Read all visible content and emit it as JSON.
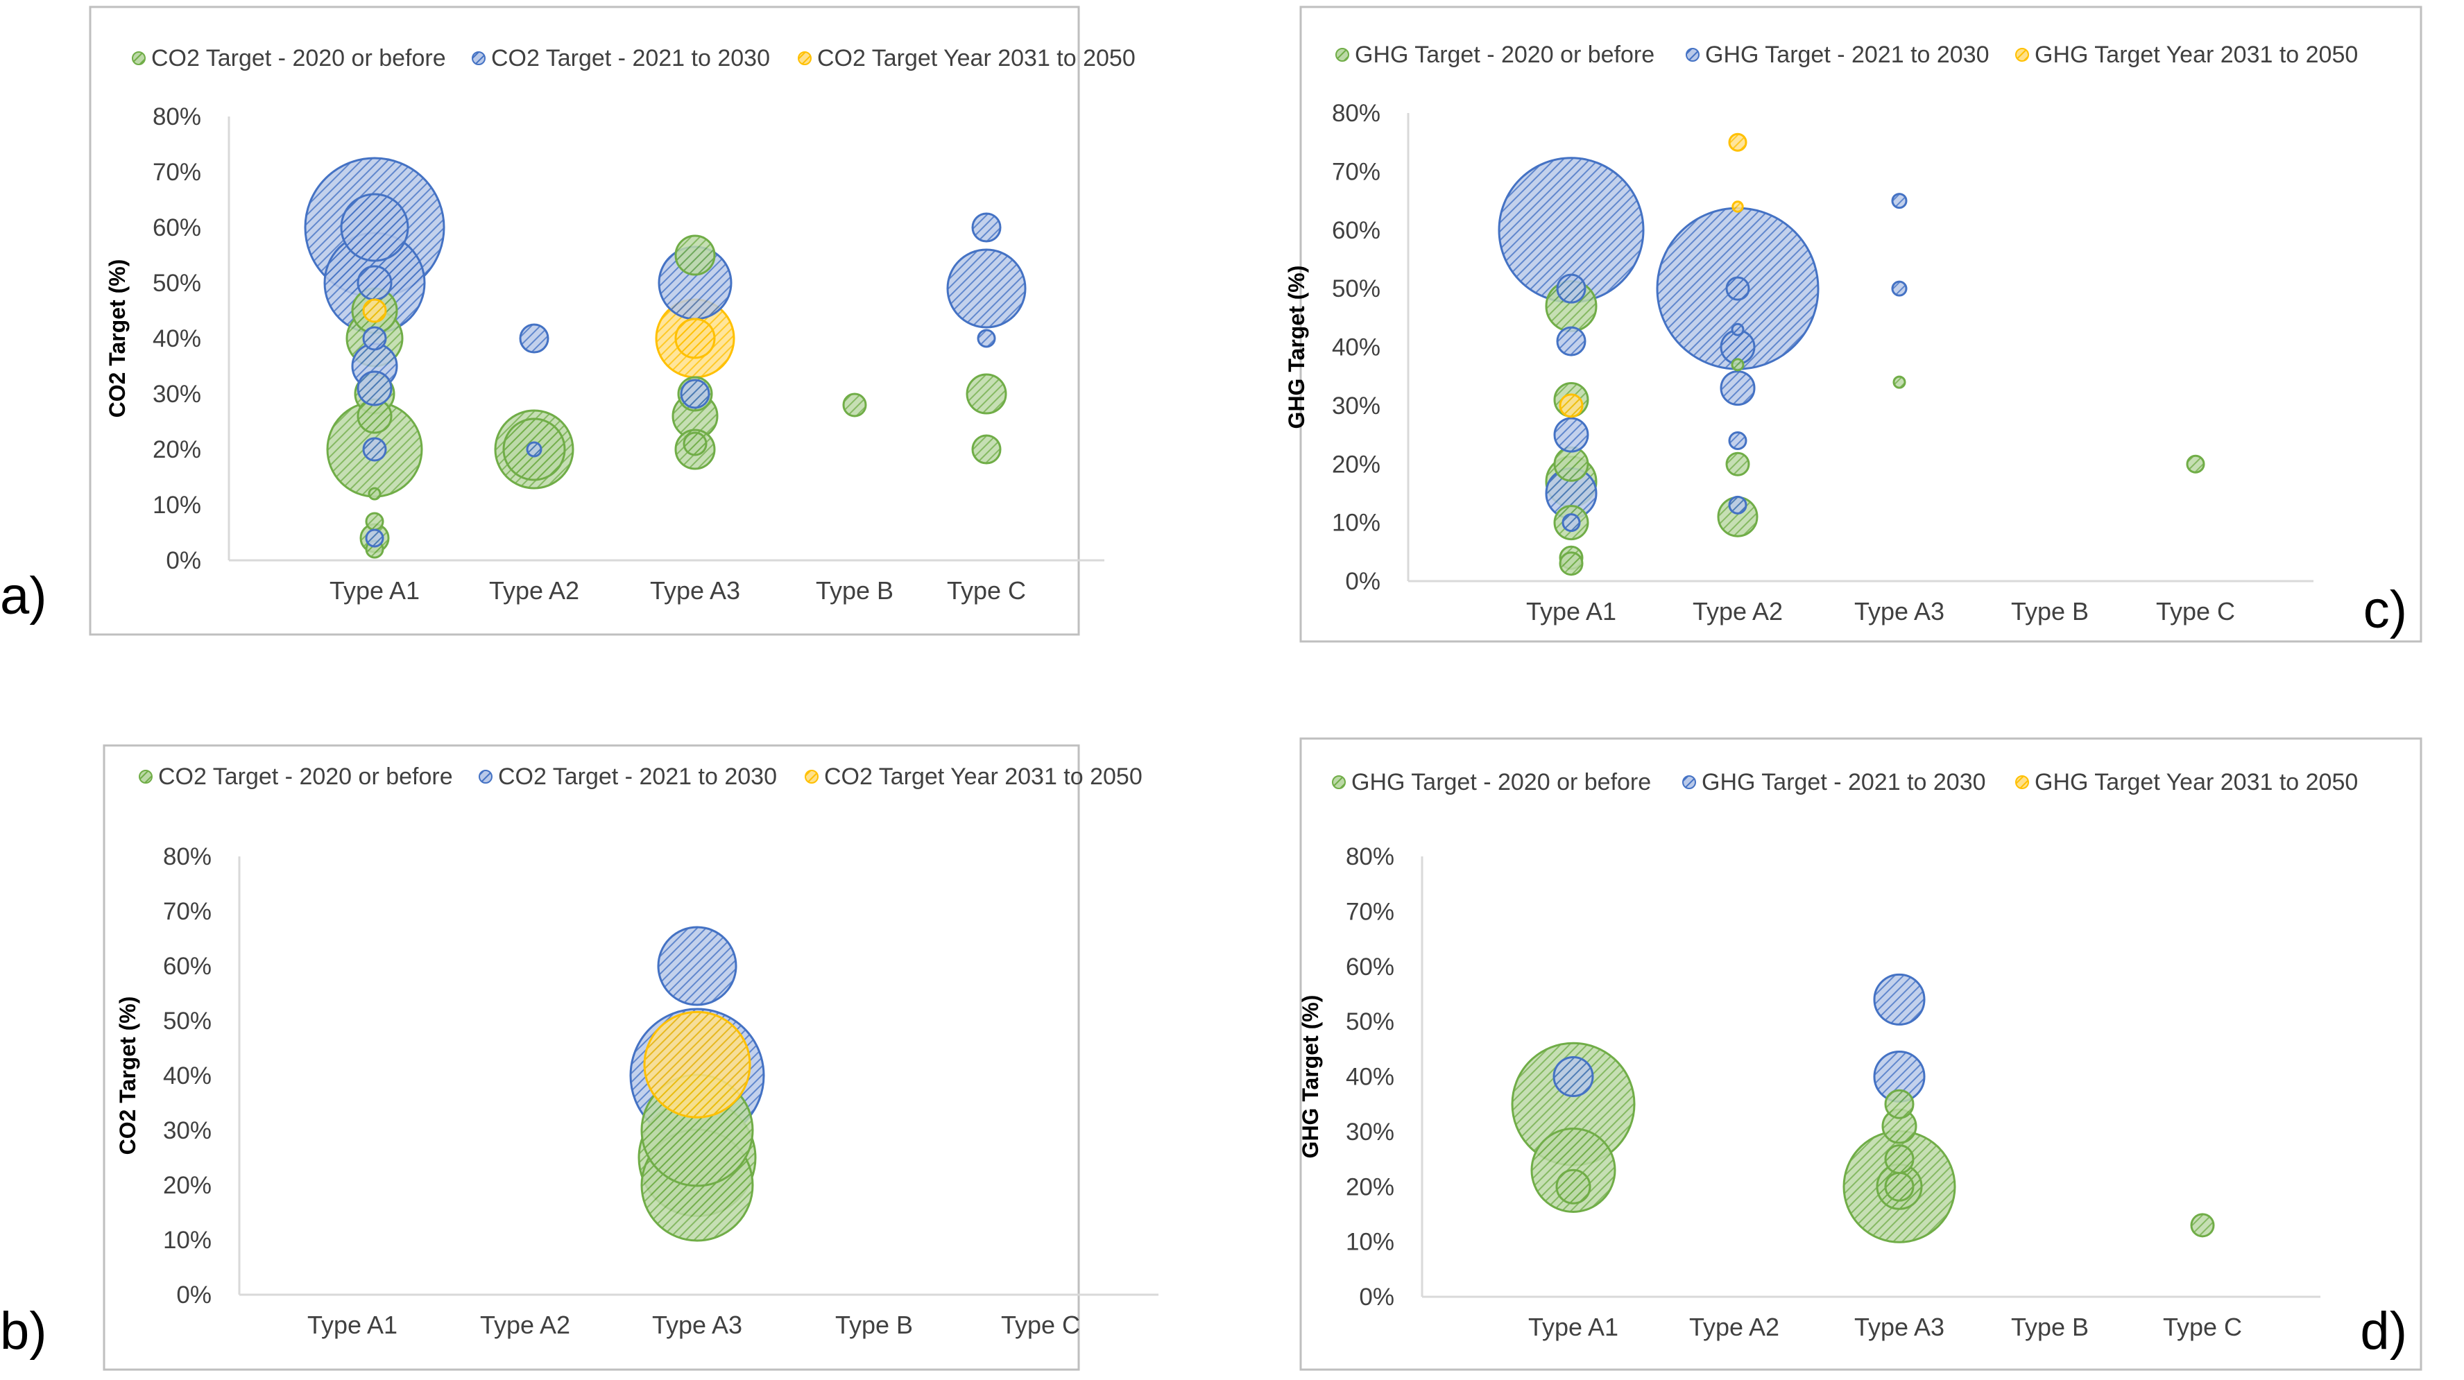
{
  "colors": {
    "green": "#70AD47",
    "blue": "#4472C4",
    "yellow": "#FFC000",
    "frame": "#BFBFBF",
    "axis": "#D9D9D9",
    "text": "#404040"
  },
  "chart_data": [
    {
      "panel_label": "a)",
      "type": "scatter",
      "title": "",
      "legend_position": "top",
      "legend": [
        "CO2 Target - 2020 or before",
        "CO2 Target - 2021 to 2030",
        "CO2 Target Year 2031 to 2050"
      ],
      "ylabel": "CO2 Target (%)",
      "xlabel": "",
      "categories": [
        "Type A1",
        "Type A2",
        "Type A3",
        "Type B",
        "Type C"
      ],
      "yticks": [
        "0%",
        "10%",
        "20%",
        "30%",
        "40%",
        "50%",
        "60%",
        "70%",
        "80%"
      ],
      "ylim": [
        0,
        80
      ],
      "grid": false,
      "points": [
        {
          "series": 0,
          "category": 0,
          "value": 20,
          "size": 17
        },
        {
          "series": 0,
          "category": 0,
          "value": 40,
          "size": 10
        },
        {
          "series": 0,
          "category": 0,
          "value": 45,
          "size": 8
        },
        {
          "series": 0,
          "category": 0,
          "value": 30,
          "size": 7
        },
        {
          "series": 0,
          "category": 0,
          "value": 26,
          "size": 6
        },
        {
          "series": 0,
          "category": 0,
          "value": 7,
          "size": 3
        },
        {
          "series": 0,
          "category": 0,
          "value": 4,
          "size": 5
        },
        {
          "series": 0,
          "category": 0,
          "value": 2,
          "size": 3
        },
        {
          "series": 0,
          "category": 0,
          "value": 12,
          "size": 2
        },
        {
          "series": 1,
          "category": 0,
          "value": 60,
          "size": 25
        },
        {
          "series": 1,
          "category": 0,
          "value": 50,
          "size": 18
        },
        {
          "series": 1,
          "category": 0,
          "value": 60,
          "size": 12
        },
        {
          "series": 1,
          "category": 0,
          "value": 50,
          "size": 6
        },
        {
          "series": 1,
          "category": 0,
          "value": 35,
          "size": 8
        },
        {
          "series": 1,
          "category": 0,
          "value": 31,
          "size": 6
        },
        {
          "series": 1,
          "category": 0,
          "value": 40,
          "size": 4
        },
        {
          "series": 1,
          "category": 0,
          "value": 20,
          "size": 4
        },
        {
          "series": 1,
          "category": 0,
          "value": 4,
          "size": 3
        },
        {
          "series": 2,
          "category": 0,
          "value": 45,
          "size": 4
        },
        {
          "series": 0,
          "category": 1,
          "value": 20,
          "size": 14
        },
        {
          "series": 0,
          "category": 1,
          "value": 20,
          "size": 11
        },
        {
          "series": 1,
          "category": 1,
          "value": 40,
          "size": 5
        },
        {
          "series": 1,
          "category": 1,
          "value": 20,
          "size": 2.5
        },
        {
          "series": 0,
          "category": 2,
          "value": 55,
          "size": 7
        },
        {
          "series": 0,
          "category": 2,
          "value": 26,
          "size": 8
        },
        {
          "series": 0,
          "category": 2,
          "value": 20,
          "size": 7
        },
        {
          "series": 0,
          "category": 2,
          "value": 21,
          "size": 4
        },
        {
          "series": 0,
          "category": 2,
          "value": 30,
          "size": 6
        },
        {
          "series": 1,
          "category": 2,
          "value": 50,
          "size": 13
        },
        {
          "series": 1,
          "category": 2,
          "value": 30,
          "size": 5
        },
        {
          "series": 2,
          "category": 2,
          "value": 40,
          "size": 14
        },
        {
          "series": 2,
          "category": 2,
          "value": 40,
          "size": 7
        },
        {
          "series": 0,
          "category": 3,
          "value": 28,
          "size": 4
        },
        {
          "series": 0,
          "category": 4,
          "value": 30,
          "size": 7
        },
        {
          "series": 0,
          "category": 4,
          "value": 20,
          "size": 5
        },
        {
          "series": 1,
          "category": 4,
          "value": 60,
          "size": 5
        },
        {
          "series": 1,
          "category": 4,
          "value": 49,
          "size": 14
        },
        {
          "series": 1,
          "category": 4,
          "value": 40,
          "size": 3
        }
      ]
    },
    {
      "panel_label": "b)",
      "type": "scatter",
      "title": "",
      "legend_position": "top",
      "legend": [
        "CO2 Target - 2020 or before",
        "CO2 Target - 2021 to 2030",
        "CO2 Target Year 2031 to 2050"
      ],
      "ylabel": "CO2 Target (%)",
      "xlabel": "",
      "categories": [
        "Type A1",
        "Type A2",
        "Type A3",
        "Type B",
        "Type C"
      ],
      "yticks": [
        "0%",
        "10%",
        "20%",
        "30%",
        "40%",
        "50%",
        "60%",
        "70%",
        "80%"
      ],
      "ylim": [
        0,
        80
      ],
      "grid": false,
      "points": [
        {
          "series": 0,
          "category": 2,
          "value": 20,
          "size": 20
        },
        {
          "series": 0,
          "category": 2,
          "value": 25,
          "size": 21
        },
        {
          "series": 0,
          "category": 2,
          "value": 30,
          "size": 20
        },
        {
          "series": 1,
          "category": 2,
          "value": 60,
          "size": 14
        },
        {
          "series": 1,
          "category": 2,
          "value": 40,
          "size": 24
        },
        {
          "series": 2,
          "category": 2,
          "value": 42,
          "size": 19
        }
      ]
    },
    {
      "panel_label": "c)",
      "type": "scatter",
      "title": "",
      "legend_position": "top",
      "legend": [
        "GHG Target - 2020 or before",
        "GHG Target - 2021 to 2030",
        "GHG Target Year 2031 to 2050"
      ],
      "ylabel": "GHG Target (%)",
      "xlabel": "",
      "categories": [
        "Type A1",
        "Type A2",
        "Type A3",
        "Type B",
        "Type C"
      ],
      "yticks": [
        "0%",
        "10%",
        "20%",
        "30%",
        "40%",
        "50%",
        "60%",
        "70%",
        "80%"
      ],
      "ylim": [
        0,
        80
      ],
      "grid": false,
      "points": [
        {
          "series": 0,
          "category": 0,
          "value": 47,
          "size": 9
        },
        {
          "series": 0,
          "category": 0,
          "value": 31,
          "size": 6
        },
        {
          "series": 0,
          "category": 0,
          "value": 20,
          "size": 6
        },
        {
          "series": 0,
          "category": 0,
          "value": 17,
          "size": 9
        },
        {
          "series": 0,
          "category": 0,
          "value": 10,
          "size": 6
        },
        {
          "series": 0,
          "category": 0,
          "value": 4,
          "size": 4
        },
        {
          "series": 0,
          "category": 0,
          "value": 3,
          "size": 4
        },
        {
          "series": 1,
          "category": 0,
          "value": 60,
          "size": 26
        },
        {
          "series": 1,
          "category": 0,
          "value": 50,
          "size": 5
        },
        {
          "series": 1,
          "category": 0,
          "value": 41,
          "size": 5
        },
        {
          "series": 1,
          "category": 0,
          "value": 25,
          "size": 6
        },
        {
          "series": 1,
          "category": 0,
          "value": 15,
          "size": 9
        },
        {
          "series": 1,
          "category": 0,
          "value": 10,
          "size": 3
        },
        {
          "series": 2,
          "category": 0,
          "value": 30,
          "size": 4
        },
        {
          "series": 0,
          "category": 1,
          "value": 11,
          "size": 7
        },
        {
          "series": 0,
          "category": 1,
          "value": 20,
          "size": 4
        },
        {
          "series": 0,
          "category": 1,
          "value": 37,
          "size": 2
        },
        {
          "series": 1,
          "category": 1,
          "value": 50,
          "size": 29
        },
        {
          "series": 1,
          "category": 1,
          "value": 50,
          "size": 4
        },
        {
          "series": 1,
          "category": 1,
          "value": 43,
          "size": 2
        },
        {
          "series": 1,
          "category": 1,
          "value": 40,
          "size": 6
        },
        {
          "series": 1,
          "category": 1,
          "value": 33,
          "size": 6
        },
        {
          "series": 1,
          "category": 1,
          "value": 24,
          "size": 3
        },
        {
          "series": 1,
          "category": 1,
          "value": 13,
          "size": 3
        },
        {
          "series": 2,
          "category": 1,
          "value": 75,
          "size": 3
        },
        {
          "series": 2,
          "category": 1,
          "value": 64,
          "size": 1.8
        },
        {
          "series": 0,
          "category": 2,
          "value": 34,
          "size": 2
        },
        {
          "series": 1,
          "category": 2,
          "value": 65,
          "size": 2.5
        },
        {
          "series": 1,
          "category": 2,
          "value": 50,
          "size": 2.5
        },
        {
          "series": 0,
          "category": 4,
          "value": 20,
          "size": 3
        }
      ]
    },
    {
      "panel_label": "d)",
      "type": "scatter",
      "title": "",
      "legend_position": "top",
      "legend": [
        "GHG Target - 2020 or before",
        "GHG Target - 2021 to 2030",
        "GHG Target Year 2031 to 2050"
      ],
      "ylabel": "GHG Target (%)",
      "xlabel": "",
      "categories": [
        "Type A1",
        "Type A2",
        "Type A3",
        "Type B",
        "Type C"
      ],
      "yticks": [
        "0%",
        "10%",
        "20%",
        "30%",
        "40%",
        "50%",
        "60%",
        "70%",
        "80%"
      ],
      "ylim": [
        0,
        80
      ],
      "grid": false,
      "points": [
        {
          "series": 0,
          "category": 0,
          "value": 35,
          "size": 22
        },
        {
          "series": 0,
          "category": 0,
          "value": 23,
          "size": 15
        },
        {
          "series": 0,
          "category": 0,
          "value": 20,
          "size": 6
        },
        {
          "series": 1,
          "category": 0,
          "value": 40,
          "size": 7
        },
        {
          "series": 0,
          "category": 2,
          "value": 20,
          "size": 20
        },
        {
          "series": 0,
          "category": 2,
          "value": 20,
          "size": 8
        },
        {
          "series": 0,
          "category": 2,
          "value": 20,
          "size": 5
        },
        {
          "series": 0,
          "category": 2,
          "value": 35,
          "size": 5
        },
        {
          "series": 0,
          "category": 2,
          "value": 31,
          "size": 6
        },
        {
          "series": 0,
          "category": 2,
          "value": 25,
          "size": 5
        },
        {
          "series": 1,
          "category": 2,
          "value": 54,
          "size": 9
        },
        {
          "series": 1,
          "category": 2,
          "value": 40,
          "size": 9
        },
        {
          "series": 0,
          "category": 4,
          "value": 13,
          "size": 4
        }
      ]
    }
  ]
}
